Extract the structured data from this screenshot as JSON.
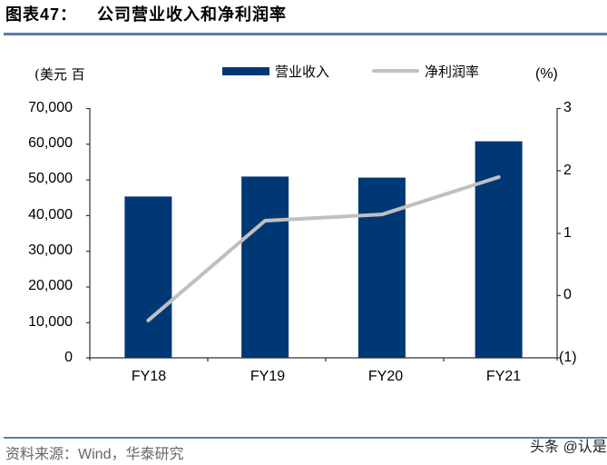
{
  "header": {
    "figure_label": "图表47：",
    "title": "公司营业收入和净利润率"
  },
  "axes": {
    "left_unit": "(美元 百",
    "right_unit": "(%)",
    "left_ticks": [
      "70,000",
      "60,000",
      "50,000",
      "40,000",
      "30,000",
      "20,000",
      "10,000",
      "0"
    ],
    "right_ticks": [
      "3",
      "2",
      "1",
      "0",
      "(1)"
    ]
  },
  "legend": {
    "items": [
      {
        "label": "营业收入",
        "type": "bar",
        "color": "#003876"
      },
      {
        "label": "净利润率",
        "type": "line",
        "color": "#c0c0c0"
      }
    ]
  },
  "footer": {
    "source_prefix": "资料来源：",
    "source_wind": "Wind",
    "source_suffix": "，华泰研究",
    "watermark": "头条 @认是"
  },
  "colors": {
    "bar": "#003876",
    "line": "#c0c0c0",
    "rule": "#5b7cab",
    "axis": "#333333"
  },
  "chart_data": {
    "type": "bar",
    "title": "公司营业收入和净利润率",
    "categories": [
      "FY18",
      "FY19",
      "FY20",
      "FY21"
    ],
    "series": [
      {
        "name": "营业收入",
        "type": "bar",
        "axis": "left",
        "values": [
          45300,
          50900,
          50600,
          60800
        ]
      },
      {
        "name": "净利润率",
        "type": "line",
        "axis": "right",
        "values": [
          -0.4,
          1.2,
          1.3,
          1.9
        ]
      }
    ],
    "xlabel": "",
    "ylabel": "(美元 百",
    "y2label": "(%)",
    "ylim": [
      0,
      70000
    ],
    "y2lim": [
      -1,
      3
    ],
    "grid": false,
    "legend_position": "top"
  }
}
